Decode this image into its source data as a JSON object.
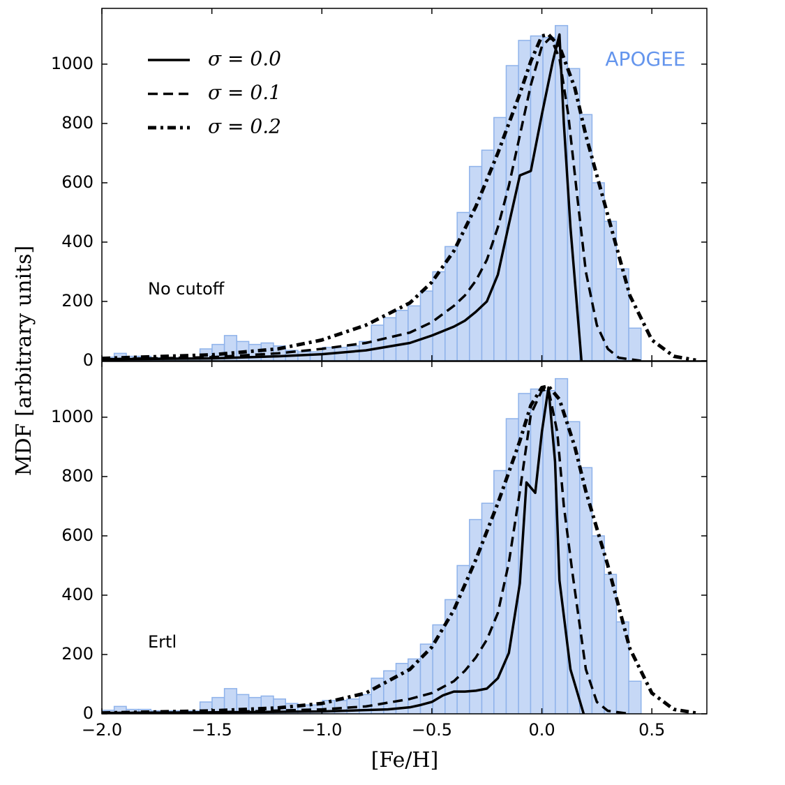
{
  "chart_data": [
    {
      "type": "histogram",
      "name": "APOGEE",
      "name_color": "#6495ed",
      "label": "No cutoff",
      "ylabel": "MDF [arbitrary units]",
      "color": "#c6d8f6",
      "edgecolor": "#8eb2ea",
      "bins": [
        -2.0,
        -1.944,
        -1.889,
        -1.833,
        -1.777,
        -1.722,
        -1.666,
        -1.61,
        -1.554,
        -1.499,
        -1.443,
        -1.387,
        -1.332,
        -1.276,
        -1.22,
        -1.165,
        -1.109,
        -1.053,
        -0.997,
        -0.942,
        -0.886,
        -0.83,
        -0.775,
        -0.719,
        -0.663,
        -0.608,
        -0.552,
        -0.496,
        -0.44,
        -0.385,
        -0.329,
        -0.273,
        -0.218,
        -0.162,
        -0.106,
        -0.051,
        0.005,
        0.061,
        0.117,
        0.172,
        0.228,
        0.284,
        0.339,
        0.395,
        0.451
      ],
      "values": [
        12,
        25,
        15,
        15,
        10,
        10,
        10,
        10,
        40,
        55,
        85,
        65,
        55,
        60,
        50,
        35,
        30,
        30,
        45,
        45,
        50,
        65,
        120,
        145,
        170,
        185,
        235,
        300,
        385,
        500,
        655,
        710,
        820,
        995,
        1080,
        1095,
        1090,
        1130,
        985,
        830,
        600,
        470,
        310,
        110
      ],
      "series": [
        {
          "name": "σ = 0.0",
          "color": "#000000",
          "style": "solid",
          "x": [
            -2.0,
            -1.5,
            -1.2,
            -1.0,
            -0.8,
            -0.6,
            -0.5,
            -0.4,
            -0.35,
            -0.3,
            -0.25,
            -0.2,
            -0.15,
            -0.1,
            -0.05,
            0.0,
            0.05,
            0.08,
            0.1,
            0.13,
            0.18
          ],
          "values": [
            5,
            8,
            15,
            22,
            35,
            60,
            85,
            115,
            135,
            165,
            200,
            290,
            460,
            625,
            640,
            830,
            1010,
            1100,
            800,
            450,
            0
          ]
        },
        {
          "name": "σ = 0.1",
          "color": "#000000",
          "style": "dashed",
          "x": [
            -2.0,
            -1.5,
            -1.2,
            -1.0,
            -0.8,
            -0.6,
            -0.5,
            -0.4,
            -0.35,
            -0.3,
            -0.25,
            -0.2,
            -0.15,
            -0.1,
            -0.05,
            0.0,
            0.04,
            0.08,
            0.12,
            0.16,
            0.2,
            0.25,
            0.3,
            0.35,
            0.45
          ],
          "values": [
            5,
            12,
            25,
            40,
            60,
            95,
            130,
            185,
            220,
            270,
            340,
            450,
            590,
            760,
            930,
            1060,
            1090,
            1020,
            830,
            560,
            300,
            120,
            40,
            10,
            0
          ]
        },
        {
          "name": "σ = 0.2",
          "color": "#000000",
          "style": "dashdot",
          "x": [
            -2.0,
            -1.5,
            -1.2,
            -1.0,
            -0.8,
            -0.6,
            -0.5,
            -0.4,
            -0.3,
            -0.2,
            -0.1,
            -0.05,
            0.0,
            0.03,
            0.08,
            0.15,
            0.2,
            0.3,
            0.4,
            0.5,
            0.6,
            0.7
          ],
          "values": [
            8,
            20,
            40,
            70,
            120,
            195,
            265,
            370,
            520,
            700,
            900,
            1010,
            1095,
            1100,
            1060,
            920,
            760,
            490,
            220,
            70,
            15,
            2
          ]
        }
      ],
      "legend": "upper left",
      "xlim": [
        -2.0,
        0.75
      ],
      "xticks": [
        -2.0,
        -1.5,
        -1.0,
        -0.5,
        0.0,
        0.5
      ],
      "ylim": [
        0,
        1188
      ],
      "yticks": [
        0,
        200,
        400,
        600,
        800,
        1000
      ]
    },
    {
      "type": "histogram",
      "label": "Ertl",
      "xlabel": "[Fe/H]",
      "color": "#c6d8f6",
      "edgecolor": "#8eb2ea",
      "bins": [
        -2.0,
        -1.944,
        -1.889,
        -1.833,
        -1.777,
        -1.722,
        -1.666,
        -1.61,
        -1.554,
        -1.499,
        -1.443,
        -1.387,
        -1.332,
        -1.276,
        -1.22,
        -1.165,
        -1.109,
        -1.053,
        -0.997,
        -0.942,
        -0.886,
        -0.83,
        -0.775,
        -0.719,
        -0.663,
        -0.608,
        -0.552,
        -0.496,
        -0.44,
        -0.385,
        -0.329,
        -0.273,
        -0.218,
        -0.162,
        -0.106,
        -0.051,
        0.005,
        0.061,
        0.117,
        0.172,
        0.228,
        0.284,
        0.339,
        0.395,
        0.451
      ],
      "values": [
        12,
        25,
        15,
        15,
        10,
        10,
        10,
        10,
        40,
        55,
        85,
        65,
        55,
        60,
        50,
        35,
        30,
        30,
        45,
        45,
        50,
        65,
        120,
        145,
        170,
        185,
        235,
        300,
        385,
        500,
        655,
        710,
        820,
        995,
        1080,
        1095,
        1090,
        1130,
        985,
        830,
        600,
        470,
        310,
        110
      ],
      "series": [
        {
          "name": "σ = 0.0",
          "color": "#000000",
          "style": "solid",
          "x": [
            -2.0,
            -1.5,
            -1.0,
            -0.7,
            -0.6,
            -0.55,
            -0.5,
            -0.45,
            -0.4,
            -0.35,
            -0.3,
            -0.25,
            -0.2,
            -0.15,
            -0.1,
            -0.07,
            -0.03,
            0.0,
            0.03,
            0.06,
            0.08,
            0.13,
            0.19
          ],
          "values": [
            3,
            5,
            8,
            15,
            22,
            30,
            40,
            62,
            75,
            75,
            78,
            85,
            120,
            205,
            440,
            780,
            745,
            950,
            1100,
            850,
            450,
            150,
            0
          ]
        },
        {
          "name": "σ = 0.1",
          "color": "#000000",
          "style": "dashed",
          "x": [
            -2.0,
            -1.5,
            -1.0,
            -0.8,
            -0.6,
            -0.5,
            -0.4,
            -0.35,
            -0.3,
            -0.25,
            -0.2,
            -0.15,
            -0.1,
            -0.05,
            0.0,
            0.03,
            0.07,
            0.1,
            0.14,
            0.2,
            0.25,
            0.3,
            0.4
          ],
          "values": [
            3,
            5,
            15,
            25,
            50,
            70,
            110,
            145,
            190,
            250,
            340,
            510,
            750,
            1010,
            1090,
            1095,
            950,
            700,
            470,
            150,
            40,
            10,
            0
          ]
        },
        {
          "name": "σ = 0.2",
          "color": "#000000",
          "style": "dashdot",
          "x": [
            -2.0,
            -1.5,
            -1.2,
            -1.0,
            -0.8,
            -0.6,
            -0.5,
            -0.4,
            -0.3,
            -0.2,
            -0.1,
            -0.05,
            0.0,
            0.03,
            0.08,
            0.15,
            0.2,
            0.3,
            0.4,
            0.5,
            0.6,
            0.7
          ],
          "values": [
            3,
            10,
            20,
            35,
            70,
            150,
            225,
            350,
            520,
            710,
            920,
            1040,
            1100,
            1105,
            1060,
            900,
            750,
            500,
            220,
            70,
            15,
            3
          ]
        }
      ],
      "xlim": [
        -2.0,
        0.75
      ],
      "xticks": [
        {
          "value": -2.0,
          "label": "−2.0"
        },
        {
          "value": -1.5,
          "label": "−1.5"
        },
        {
          "value": -1.0,
          "label": "−1.0"
        },
        {
          "value": -0.5,
          "label": "−0.5"
        },
        {
          "value": 0.0,
          "label": "0.0"
        },
        0.5
      ],
      "ylim": [
        0,
        1188
      ],
      "yticks": [
        0,
        200,
        400,
        600,
        800,
        1000
      ]
    }
  ]
}
